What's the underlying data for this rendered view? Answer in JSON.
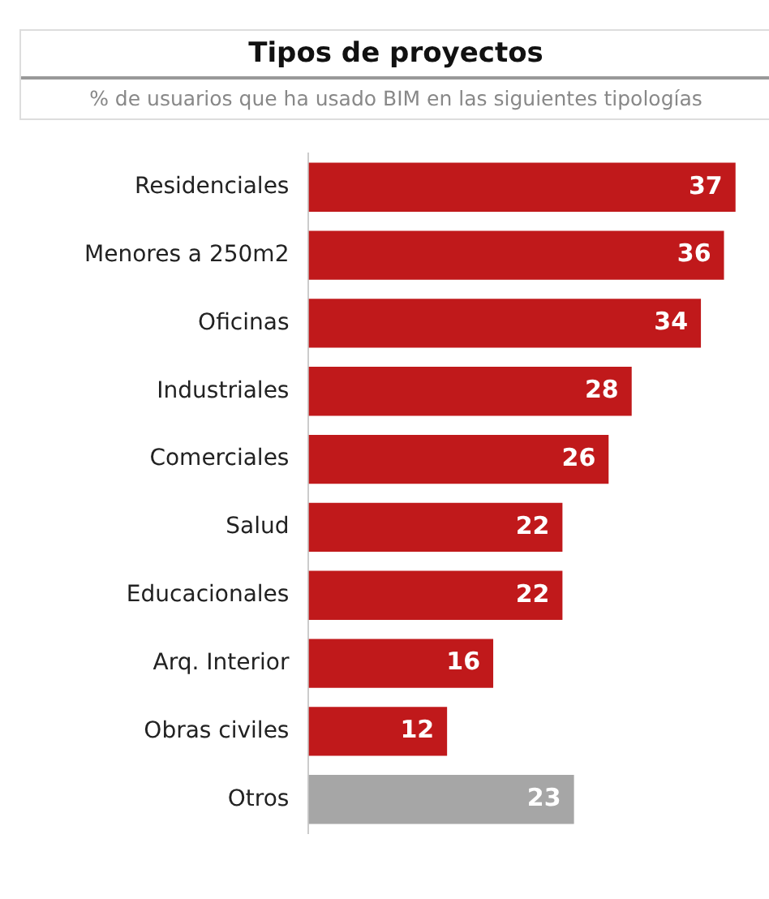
{
  "chart_data": {
    "type": "bar",
    "orientation": "horizontal",
    "title": "Tipos de proyectos",
    "subtitle": "% de usuarios que ha usado BIM en las siguientes tipologías",
    "categories": [
      "Residenciales",
      "Menores a 250m2",
      "Oficinas",
      "Industriales",
      "Comerciales",
      "Salud",
      "Educacionales",
      "Arq. Interior",
      "Obras civiles",
      "Otros"
    ],
    "values": [
      37,
      36,
      34,
      28,
      26,
      22,
      22,
      16,
      12,
      23
    ],
    "colors": [
      "#c0191b",
      "#c0191b",
      "#c0191b",
      "#c0191b",
      "#c0191b",
      "#c0191b",
      "#c0191b",
      "#c0191b",
      "#c0191b",
      "#a6a6a6"
    ],
    "data_labels": true,
    "grid": false,
    "legend": false
  }
}
